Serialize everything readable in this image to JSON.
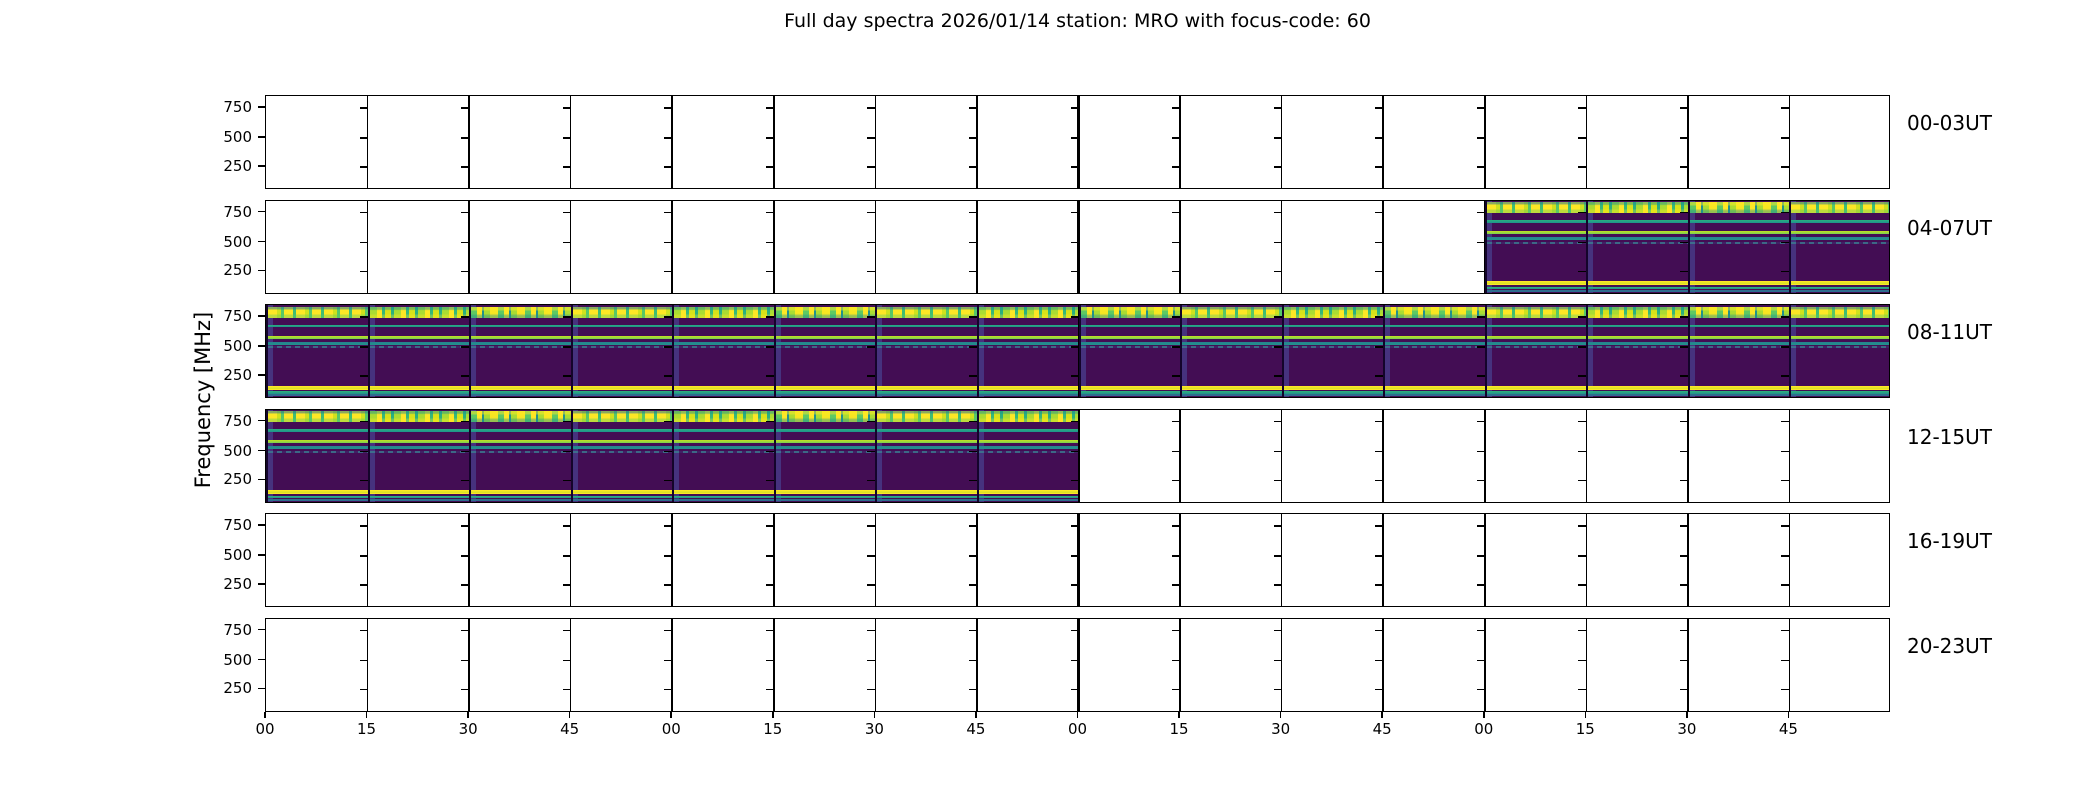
{
  "figure": {
    "title": "Full day spectra 2026/01/14 station: MRO with focus-code: 60"
  },
  "axes": {
    "ylabel": "Frequency [MHz]",
    "ytick_labels": [
      "750",
      "500",
      "250"
    ],
    "xtick_labels": [
      "00",
      "15",
      "30",
      "45",
      "00",
      "15",
      "30",
      "45",
      "00",
      "15",
      "30",
      "45",
      "00",
      "15",
      "30",
      "45"
    ]
  },
  "rows": [
    {
      "label": "00-03UT",
      "has_data": false,
      "data_start_segment": null,
      "data_end_segment": null
    },
    {
      "label": "04-07UT",
      "has_data": true,
      "data_start_segment": 12,
      "data_end_segment": 16
    },
    {
      "label": "08-11UT",
      "has_data": true,
      "data_start_segment": 0,
      "data_end_segment": 16
    },
    {
      "label": "12-15UT",
      "has_data": true,
      "data_start_segment": 0,
      "data_end_segment": 8
    },
    {
      "label": "16-19UT",
      "has_data": false,
      "data_start_segment": null,
      "data_end_segment": null
    },
    {
      "label": "20-23UT",
      "has_data": false,
      "data_start_segment": null,
      "data_end_segment": null
    }
  ],
  "colors": {
    "background": "#ffffff",
    "axis": "#000000",
    "spectrogram_background": "#430d54",
    "segment_left_strip": "#46327e",
    "teal_line": "#21918c",
    "green_line": "#7ad151",
    "yellow_band": "#fde725",
    "blue_line": "#2e6d8e"
  },
  "chart_data": {
    "type": "heatmap",
    "title": "Full day spectra 2026/01/14 station: MRO with focus-code: 60",
    "station": "MRO",
    "date": "2026/01/14",
    "focus_code": "60",
    "ylabel": "Frequency [MHz]",
    "yticks_mhz": [
      250,
      500,
      750
    ],
    "ylim_mhz_approx": [
      65,
      850
    ],
    "x_axis": {
      "tick_labels_minutes": [
        "00",
        "15",
        "30",
        "45",
        "00",
        "15",
        "30",
        "45",
        "00",
        "15",
        "30",
        "45",
        "00",
        "15",
        "30",
        "45"
      ],
      "tick_interval_minutes": 15,
      "hours_per_row": 4,
      "segments_per_row": 16,
      "segment_duration_minutes": 15
    },
    "legend_position": "none",
    "grid": "vertical 15-min segment boundaries drawn as black lines",
    "colormap": "viridis",
    "rows": [
      {
        "label": "00-03UT",
        "time_range_ut": "00:00-04:00",
        "segments_with_data": 0,
        "coverage": "no data (blank panel)"
      },
      {
        "label": "04-07UT",
        "time_range_ut": "04:00-08:00",
        "segments_with_data": 4,
        "coverage": "data in last 4 of 16 segments (07:00-08:00)"
      },
      {
        "label": "08-11UT",
        "time_range_ut": "08:00-12:00",
        "segments_with_data": 16,
        "coverage": "data in all 16 segments (08:00-12:00)"
      },
      {
        "label": "12-15UT",
        "time_range_ut": "12:00-16:00",
        "segments_with_data": 8,
        "coverage": "data in first 8 of 16 segments (12:00-14:00)"
      },
      {
        "label": "16-19UT",
        "time_range_ut": "16:00-20:00",
        "segments_with_data": 0,
        "coverage": "no data (blank panel)"
      },
      {
        "label": "20-23UT",
        "time_range_ut": "20:00-24:00",
        "segments_with_data": 0,
        "coverage": "no data (blank panel)"
      }
    ],
    "horizontal_bands_mhz_approx": [
      {
        "range_mhz": "740-835",
        "appearance": "bright speckled yellow/green noise band at top"
      },
      {
        "range_mhz": "~675",
        "appearance": "teal line"
      },
      {
        "range_mhz": "~565",
        "appearance": "bright green-yellow line"
      },
      {
        "range_mhz": "~530",
        "appearance": "teal line"
      },
      {
        "range_mhz": "~490",
        "appearance": "faint dashed blue line"
      },
      {
        "range_mhz": "105-140",
        "appearance": "bright yellow band"
      },
      {
        "range_mhz": "~95",
        "appearance": "teal line"
      },
      {
        "range_mhz": "~80",
        "appearance": "blue line"
      }
    ]
  }
}
